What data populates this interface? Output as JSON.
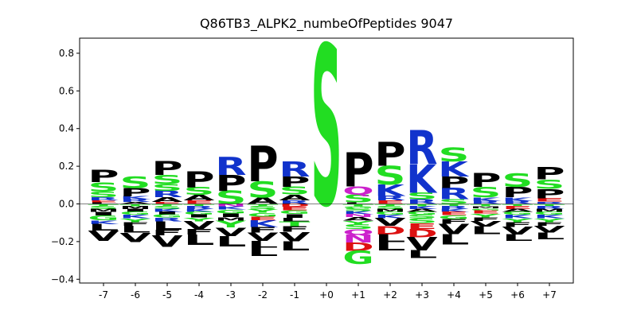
{
  "chart_data": {
    "type": "sequence-logo",
    "title": "Q86TB3_ALPK2_numbeOfPeptides 9047",
    "xlabel": "",
    "ylabel": "",
    "ylim": [
      -0.42,
      0.88
    ],
    "yticks": [
      -0.4,
      -0.2,
      0.0,
      0.2,
      0.4,
      0.6,
      0.8
    ],
    "ytick_labels": [
      "−0.4",
      "−0.2",
      "0.0",
      "0.2",
      "0.4",
      "0.6",
      "0.8"
    ],
    "grid": false,
    "legend": "none",
    "colors": {
      "acidic": "#dd1111",
      "basic": "#1133cc",
      "polar": "#22dd22",
      "amide": "#cc22cc",
      "hydrophobic": "#000000"
    },
    "residue_color_map": {
      "D": "acidic",
      "E": "acidic",
      "K": "basic",
      "R": "basic",
      "H": "basic",
      "S": "polar",
      "T": "polar",
      "G": "polar",
      "Y": "polar",
      "C": "polar",
      "N": "amide",
      "Q": "amide",
      "P": "hydrophobic",
      "A": "hydrophobic",
      "V": "hydrophobic",
      "L": "hydrophobic",
      "I": "hydrophobic",
      "M": "hydrophobic",
      "F": "hydrophobic",
      "W": "hydrophobic"
    },
    "positions": [
      {
        "label": "-7",
        "up": [
          [
            "L",
            0.008
          ],
          [
            "E",
            0.012
          ],
          [
            "R",
            0.015
          ],
          [
            "S",
            0.03
          ],
          [
            "S",
            0.05
          ],
          [
            "P",
            0.065
          ]
        ],
        "down": [
          [
            "T",
            0.012
          ],
          [
            "S",
            0.015
          ],
          [
            "M",
            0.015
          ],
          [
            "I",
            0.02
          ],
          [
            "G",
            0.025
          ],
          [
            "K",
            0.02
          ],
          [
            "L",
            0.035
          ],
          [
            "V",
            0.055
          ]
        ]
      },
      {
        "label": "-6",
        "up": [
          [
            "A",
            0.01
          ],
          [
            "R",
            0.015
          ],
          [
            "K",
            0.015
          ],
          [
            "P",
            0.045
          ],
          [
            "S",
            0.06
          ]
        ],
        "down": [
          [
            "T",
            0.012
          ],
          [
            "M",
            0.015
          ],
          [
            "I",
            0.015
          ],
          [
            "G",
            0.015
          ],
          [
            "K",
            0.02
          ],
          [
            "Y",
            0.02
          ],
          [
            "F",
            0.02
          ],
          [
            "L",
            0.035
          ],
          [
            "V",
            0.05
          ]
        ]
      },
      {
        "label": "-5",
        "up": [
          [
            "E",
            0.01
          ],
          [
            "A",
            0.025
          ],
          [
            "R",
            0.035
          ],
          [
            "S",
            0.035
          ],
          [
            "S",
            0.05
          ],
          [
            "P",
            0.075
          ]
        ],
        "down": [
          [
            "T",
            0.012
          ],
          [
            "S",
            0.015
          ],
          [
            "K",
            0.015
          ],
          [
            "I",
            0.015
          ],
          [
            "G",
            0.015
          ],
          [
            "R",
            0.02
          ],
          [
            "L",
            0.045
          ],
          [
            "F",
            0.03
          ],
          [
            "V",
            0.06
          ]
        ]
      },
      {
        "label": "-4",
        "up": [
          [
            "E",
            0.018
          ],
          [
            "A",
            0.03
          ],
          [
            "S",
            0.04
          ],
          [
            "P",
            0.085
          ]
        ],
        "down": [
          [
            "T",
            0.012
          ],
          [
            "R",
            0.015
          ],
          [
            "K",
            0.015
          ],
          [
            "G",
            0.015
          ],
          [
            "I",
            0.015
          ],
          [
            "Y",
            0.02
          ],
          [
            "V",
            0.04
          ],
          [
            "F",
            0.03
          ],
          [
            "L",
            0.055
          ]
        ]
      },
      {
        "label": "-3",
        "up": [
          [
            "S",
            0.07
          ],
          [
            "P",
            0.085
          ],
          [
            "R",
            0.095
          ]
        ],
        "down": [
          [
            "N",
            0.015
          ],
          [
            "K",
            0.015
          ],
          [
            "G",
            0.02
          ],
          [
            "I",
            0.02
          ],
          [
            "M",
            0.02
          ],
          [
            "Y",
            0.035
          ],
          [
            "V",
            0.045
          ],
          [
            "L",
            0.055
          ]
        ]
      },
      {
        "label": "-2",
        "up": [
          [
            "A",
            0.035
          ],
          [
            "S",
            0.085
          ],
          [
            "P",
            0.19
          ]
        ],
        "down": [
          [
            "T",
            0.012
          ],
          [
            "S",
            0.015
          ],
          [
            "Y",
            0.02
          ],
          [
            "G",
            0.02
          ],
          [
            "E",
            0.02
          ],
          [
            "K",
            0.035
          ],
          [
            "F",
            0.03
          ],
          [
            "V",
            0.045
          ],
          [
            "L",
            0.035
          ],
          [
            "L",
            0.045
          ]
        ]
      },
      {
        "label": "-1",
        "up": [
          [
            "R",
            0.02
          ],
          [
            "A",
            0.03
          ],
          [
            "S",
            0.04
          ],
          [
            "P",
            0.055
          ],
          [
            "R",
            0.08
          ]
        ],
        "down": [
          [
            "D",
            0.015
          ],
          [
            "E",
            0.018
          ],
          [
            "G",
            0.02
          ],
          [
            "I",
            0.02
          ],
          [
            "L",
            0.02
          ],
          [
            "T",
            0.025
          ],
          [
            "F",
            0.03
          ],
          [
            "V",
            0.05
          ],
          [
            "L",
            0.05
          ]
        ]
      },
      {
        "label": "+0",
        "up": [
          [
            "S",
            0.85
          ]
        ],
        "down": []
      },
      {
        "label": "+1",
        "up": [
          [
            "L",
            0.008
          ],
          [
            "S",
            0.04
          ],
          [
            "Q",
            0.045
          ],
          [
            "P",
            0.18
          ]
        ],
        "down": [
          [
            "T",
            0.012
          ],
          [
            "G",
            0.012
          ],
          [
            "S",
            0.015
          ],
          [
            "K",
            0.015
          ],
          [
            "N",
            0.015
          ],
          [
            "A",
            0.02
          ],
          [
            "Y",
            0.02
          ],
          [
            "S",
            0.025
          ],
          [
            "Q",
            0.03
          ],
          [
            "N",
            0.04
          ],
          [
            "D",
            0.045
          ],
          [
            "G",
            0.07
          ]
        ]
      },
      {
        "label": "+2",
        "up": [
          [
            "E",
            0.018
          ],
          [
            "R",
            0.025
          ],
          [
            "K",
            0.06
          ],
          [
            "S",
            0.1
          ],
          [
            "P",
            0.125
          ]
        ],
        "down": [
          [
            "T",
            0.012
          ],
          [
            "S",
            0.015
          ],
          [
            "M",
            0.015
          ],
          [
            "G",
            0.015
          ],
          [
            "K",
            0.02
          ],
          [
            "V",
            0.04
          ],
          [
            "D",
            0.045
          ],
          [
            "L",
            0.04
          ],
          [
            "L",
            0.045
          ]
        ]
      },
      {
        "label": "+3",
        "up": [
          [
            "R",
            0.025
          ],
          [
            "S",
            0.035
          ],
          [
            "K",
            0.15
          ],
          [
            "R",
            0.18
          ]
        ],
        "down": [
          [
            "T",
            0.012
          ],
          [
            "K",
            0.015
          ],
          [
            "A",
            0.015
          ],
          [
            "G",
            0.015
          ],
          [
            "S",
            0.02
          ],
          [
            "S",
            0.025
          ],
          [
            "E",
            0.03
          ],
          [
            "D",
            0.045
          ],
          [
            "V",
            0.07
          ],
          [
            "L",
            0.04
          ]
        ]
      },
      {
        "label": "+4",
        "up": [
          [
            "S",
            0.025
          ],
          [
            "R",
            0.06
          ],
          [
            "P",
            0.06
          ],
          [
            "K",
            0.08
          ],
          [
            "S",
            0.075
          ]
        ],
        "down": [
          [
            "T",
            0.012
          ],
          [
            "R",
            0.015
          ],
          [
            "K",
            0.015
          ],
          [
            "E",
            0.018
          ],
          [
            "G",
            0.02
          ],
          [
            "F",
            0.025
          ],
          [
            "V",
            0.055
          ],
          [
            "L",
            0.055
          ]
        ]
      },
      {
        "label": "+5",
        "up": [
          [
            "R",
            0.015
          ],
          [
            "K",
            0.02
          ],
          [
            "S",
            0.055
          ],
          [
            "P",
            0.075
          ]
        ],
        "down": [
          [
            "T",
            0.012
          ],
          [
            "M",
            0.012
          ],
          [
            "G",
            0.012
          ],
          [
            "E",
            0.015
          ],
          [
            "Y",
            0.02
          ],
          [
            "F",
            0.02
          ],
          [
            "V",
            0.03
          ],
          [
            "L",
            0.04
          ]
        ]
      },
      {
        "label": "+6",
        "up": [
          [
            "R",
            0.015
          ],
          [
            "K",
            0.02
          ],
          [
            "P",
            0.055
          ],
          [
            "S",
            0.07
          ]
        ],
        "down": [
          [
            "T",
            0.012
          ],
          [
            "E",
            0.015
          ],
          [
            "A",
            0.015
          ],
          [
            "G",
            0.015
          ],
          [
            "K",
            0.02
          ],
          [
            "Y",
            0.02
          ],
          [
            "F",
            0.025
          ],
          [
            "V",
            0.04
          ],
          [
            "L",
            0.035
          ]
        ]
      },
      {
        "label": "+7",
        "up": [
          [
            "R",
            0.012
          ],
          [
            "E",
            0.018
          ],
          [
            "P",
            0.05
          ],
          [
            "S",
            0.05
          ],
          [
            "P",
            0.065
          ]
        ],
        "down": [
          [
            "T",
            0.012
          ],
          [
            "R",
            0.015
          ],
          [
            "M",
            0.015
          ],
          [
            "G",
            0.015
          ],
          [
            "K",
            0.02
          ],
          [
            "Y",
            0.02
          ],
          [
            "F",
            0.02
          ],
          [
            "V",
            0.035
          ],
          [
            "L",
            0.035
          ]
        ]
      }
    ]
  }
}
